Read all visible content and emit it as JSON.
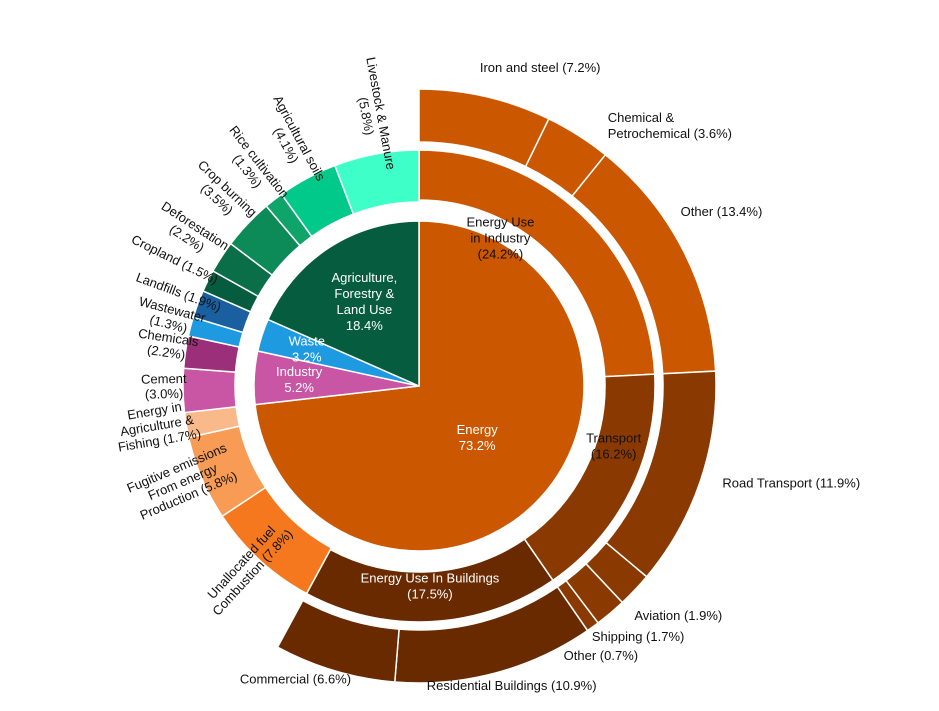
{
  "chart_data": {
    "type": "sunburst",
    "title": "",
    "sectors": [
      {
        "name": "Energy",
        "value": 73.2,
        "label": "Energy",
        "pct": "73.2%",
        "color": "#CB5700",
        "subsectors": [
          {
            "name": "Energy Use in Industry",
            "value": 24.2,
            "label": [
              "Energy Use",
              "in Industry",
              "(24.2%)"
            ],
            "color": "#CB5700",
            "end_uses": [
              {
                "name": "Iron and steel",
                "value": 7.2,
                "label": [
                  "Iron and steel (7.2%)"
                ],
                "color": "#CB5700"
              },
              {
                "name": "Chemical & Petrochemical",
                "value": 3.6,
                "label": [
                  "Chemical &",
                  "Petrochemical (3.6%)"
                ],
                "color": "#CB5700"
              },
              {
                "name": "Other",
                "value": 13.4,
                "label": [
                  "Other (13.4%)"
                ],
                "color": "#CB5700"
              }
            ]
          },
          {
            "name": "Transport",
            "value": 16.2,
            "label": [
              "Transport",
              "(16.2%)"
            ],
            "color": "#8A3A00",
            "end_uses": [
              {
                "name": "Road Transport",
                "value": 11.9,
                "label": [
                  "Road Transport (11.9%)"
                ],
                "color": "#8A3A00"
              },
              {
                "name": "Aviation",
                "value": 1.9,
                "label": [
                  "Aviation (1.9%)"
                ],
                "color": "#8A3A00"
              },
              {
                "name": "Shipping",
                "value": 1.7,
                "label": [
                  "Shipping (1.7%)"
                ],
                "color": "#8A3A00"
              },
              {
                "name": "Other",
                "value": 0.7,
                "label": [
                  "Other (0.7%)"
                ],
                "color": "#8A3A00"
              }
            ]
          },
          {
            "name": "Energy Use In Buildings",
            "value": 17.5,
            "label": [
              "Energy Use In Buildings",
              "(17.5%)"
            ],
            "color": "#6A2A00",
            "end_uses": [
              {
                "name": "Residential Buildings",
                "value": 10.9,
                "label": [
                  "Residential Buildings (10.9%)"
                ],
                "color": "#6A2A00"
              },
              {
                "name": "Commercial",
                "value": 6.6,
                "label": [
                  "Commercial (6.6%)"
                ],
                "color": "#6A2A00"
              }
            ]
          },
          {
            "name": "Unallocated fuel Combustion",
            "value": 7.8,
            "label": [
              "Unallocated fuel",
              "Combustion (7.8%)"
            ],
            "color": "#F5781E",
            "end_uses": []
          },
          {
            "name": "Fugitive emissions From energy Production",
            "value": 5.8,
            "label": [
              "Fugitive emissions",
              "From energy",
              "Production (5.8%)"
            ],
            "color": "#F89B55",
            "end_uses": []
          },
          {
            "name": "Energy in Agriculture & Fishing",
            "value": 1.7,
            "label": [
              "Energy in",
              "Agriculture &",
              "Fishing (1.7%)"
            ],
            "color": "#F9B98A",
            "end_uses": []
          }
        ]
      },
      {
        "name": "Industry",
        "value": 5.2,
        "label": "Industry",
        "pct": "5.2%",
        "color": "#C956A4",
        "subsectors": [
          {
            "name": "Cement",
            "value": 3.0,
            "label": [
              "Cement",
              "(3.0%)"
            ],
            "color": "#C956A4",
            "end_uses": []
          },
          {
            "name": "Chemicals",
            "value": 2.2,
            "label": [
              "Chemicals",
              "(2.2%)"
            ],
            "color": "#9C2F7A",
            "end_uses": []
          }
        ]
      },
      {
        "name": "Waste",
        "value": 3.2,
        "label": "Waste",
        "pct": "3.2%",
        "color": "#1E9AE0",
        "subsectors": [
          {
            "name": "Wastewater",
            "value": 1.3,
            "label": [
              "Wastewater",
              "(1.3%)"
            ],
            "color": "#1E9AE0",
            "end_uses": []
          },
          {
            "name": "Landfills",
            "value": 1.9,
            "label": [
              "Landfills (1.9%)"
            ],
            "color": "#1A5FA0",
            "end_uses": []
          }
        ]
      },
      {
        "name": "Agriculture, Forestry & Land Use",
        "value": 18.4,
        "label": [
          "Agriculture,",
          "Forestry &",
          "Land Use"
        ],
        "pct": "18.4%",
        "color": "#055C3E",
        "subsectors": [
          {
            "name": "Cropland",
            "value": 1.5,
            "label": [
              "Cropland (1.5%)"
            ],
            "color": "#055C3E",
            "end_uses": []
          },
          {
            "name": "Deforestation",
            "value": 2.2,
            "label": [
              "Deforestation",
              "(2.2%)"
            ],
            "color": "#0A6E48",
            "end_uses": []
          },
          {
            "name": "Crop burning",
            "value": 3.5,
            "label": [
              "Crop burning",
              "(3.5%)"
            ],
            "color": "#0C8A58",
            "end_uses": []
          },
          {
            "name": "Rice cultivation",
            "value": 1.3,
            "label": [
              "Rice cultivation",
              "(1.3%)"
            ],
            "color": "#0FA56A",
            "end_uses": []
          },
          {
            "name": "Agricultural soils",
            "value": 4.1,
            "label": [
              "Agricultural soils",
              "(4.1%)"
            ],
            "color": "#00C98A",
            "end_uses": []
          },
          {
            "name": "Livestock & Manure",
            "value": 5.8,
            "label": [
              "Livestock & Manure",
              "(5.8%)"
            ],
            "color": "#3FFFC8",
            "end_uses": []
          }
        ]
      }
    ]
  }
}
